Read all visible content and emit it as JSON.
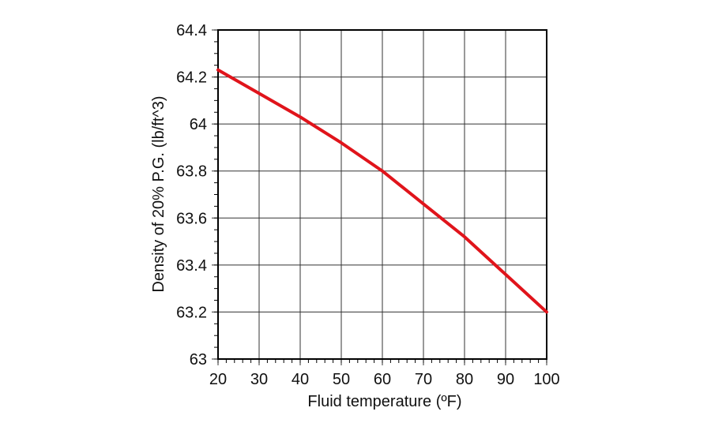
{
  "chart_data": {
    "type": "line",
    "title": "",
    "xlabel": "Fluid temperature (ºF)",
    "ylabel": "Density of 20% P.G. (lb/ft^3)",
    "xlim": [
      20,
      100
    ],
    "ylim": [
      63,
      64.4
    ],
    "xticks": [
      20,
      30,
      40,
      50,
      60,
      70,
      80,
      90,
      100
    ],
    "yticks": [
      63,
      63.2,
      63.4,
      63.6,
      63.8,
      64,
      64.2,
      64.4
    ],
    "ytick_labels": [
      "63",
      "63.2",
      "63.4",
      "63.6",
      "63.8",
      "64",
      "64.2",
      "64.4"
    ],
    "x_minor_step": 2,
    "y_minor_step": 0.05,
    "grid": true,
    "legend": null,
    "series": [
      {
        "name": "Density of 20% P.G.",
        "color": "#e0141b",
        "x": [
          20,
          30,
          40,
          50,
          60,
          70,
          80,
          90,
          100
        ],
        "y": [
          64.23,
          64.13,
          64.03,
          63.92,
          63.8,
          63.66,
          63.52,
          63.36,
          63.2
        ]
      }
    ]
  },
  "style": {
    "line_color": "#e0141b",
    "grid_color": "#333333",
    "frame_color": "#000000"
  }
}
